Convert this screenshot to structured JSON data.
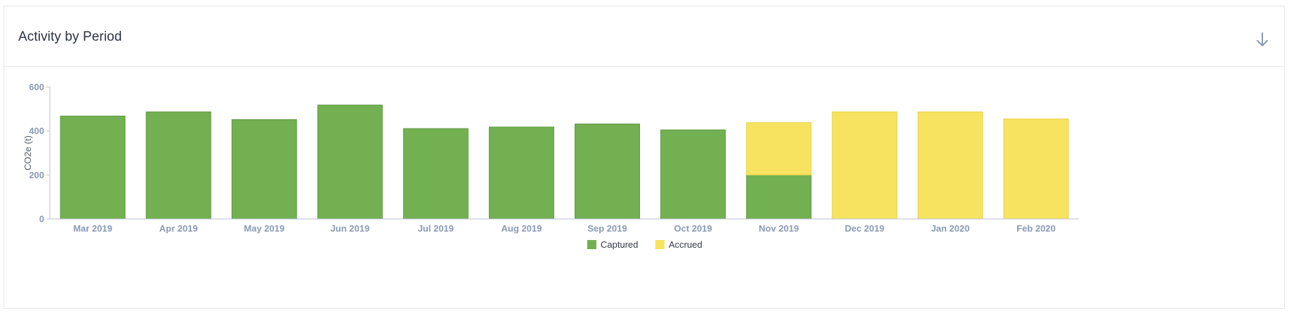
{
  "panel": {
    "title": "Activity by Period"
  },
  "icons": {
    "download": "download-arrow-icon"
  },
  "colors": {
    "captured": "#72b051",
    "accrued": "#f7e35f",
    "axis_text": "#8a9ab4",
    "axis_line": "#b9c2cf"
  },
  "chart_data": {
    "type": "bar",
    "stacked": true,
    "categories": [
      "Mar 2019",
      "Apr 2019",
      "May 2019",
      "Jun 2019",
      "Jul 2019",
      "Aug 2019",
      "Sep 2019",
      "Oct 2019",
      "Nov 2019",
      "Dec 2019",
      "Jan 2020",
      "Feb 2020"
    ],
    "series": [
      {
        "name": "Captured",
        "values": [
          468,
          487,
          452,
          518,
          411,
          418,
          432,
          405,
          200,
          0,
          0,
          0
        ]
      },
      {
        "name": "Accrued",
        "values": [
          0,
          0,
          0,
          0,
          0,
          0,
          0,
          0,
          238,
          487,
          487,
          455
        ]
      }
    ],
    "title": "",
    "xlabel": "",
    "ylabel": "CO2e (t)",
    "ylim": [
      0,
      600
    ],
    "yticks": [
      0,
      200,
      400,
      600
    ],
    "grid": false,
    "legend_position": "bottom-center"
  }
}
